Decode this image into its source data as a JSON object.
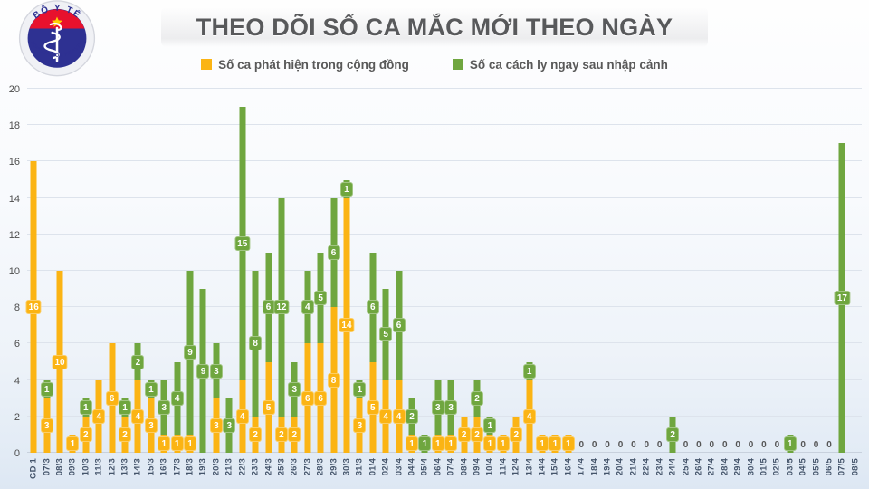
{
  "header": {
    "title": "THEO DÕI SỐ CA MẮC MỚI THEO NGÀY"
  },
  "logo": {
    "top_text": "BỘ Y TẾ",
    "bottom_text": "MINISTRY OF HEALTH"
  },
  "colors": {
    "community_yellow": "#FBB414",
    "imported_green": "#6FA63F",
    "title_text": "#58595b",
    "axis_text": "#44546a",
    "grid_line": "#dde3ec",
    "logo_navy": "#2e3192",
    "logo_red": "#e8112d",
    "logo_star_yellow": "#ffd400"
  },
  "chart_data": {
    "type": "bar",
    "stacked": true,
    "title": "THEO DÕI SỐ CA MẮC MỚI THEO NGÀY",
    "ylabel": "",
    "xlabel": "",
    "ylim": [
      0,
      20
    ],
    "ytick_step": 2,
    "grid": true,
    "legend_position": "top",
    "zero_label": "0",
    "categories": [
      "GĐ 1",
      "07/3",
      "08/3",
      "09/3",
      "10/3",
      "11/3",
      "12/3",
      "13/3",
      "14/3",
      "15/3",
      "16/3",
      "17/3",
      "18/3",
      "19/3",
      "20/3",
      "21/3",
      "22/3",
      "23/3",
      "24/3",
      "25/3",
      "26/3",
      "27/3",
      "28/3",
      "29/3",
      "30/3",
      "31/3",
      "01/4",
      "02/4",
      "03/4",
      "04/4",
      "05/4",
      "06/4",
      "07/4",
      "08/4",
      "09/4",
      "10/4",
      "11/4",
      "12/4",
      "13/4",
      "14/4",
      "15/4",
      "16/4",
      "17/4",
      "18/4",
      "19/4",
      "20/4",
      "21/4",
      "22/4",
      "23/4",
      "24/4",
      "25/4",
      "26/4",
      "27/4",
      "28/4",
      "29/4",
      "30/4",
      "01/5",
      "02/5",
      "03/5",
      "04/5",
      "05/5",
      "06/5",
      "07/5",
      "08/5"
    ],
    "series": [
      {
        "name": "Số ca phát hiện trong cộng đồng",
        "color": "#FBB414",
        "values": [
          16,
          3,
          10,
          1,
          2,
          4,
          6,
          2,
          4,
          3,
          1,
          1,
          1,
          0,
          3,
          0,
          4,
          2,
          5,
          2,
          2,
          6,
          6,
          8,
          14,
          3,
          5,
          4,
          4,
          1,
          0,
          1,
          1,
          2,
          2,
          1,
          1,
          2,
          4,
          1,
          1,
          1,
          0,
          0,
          0,
          0,
          0,
          0,
          0,
          0,
          0,
          0,
          0,
          0,
          0,
          0,
          0,
          0,
          0,
          0,
          0,
          0,
          0,
          null
        ]
      },
      {
        "name": "Số ca cách ly ngay sau nhập cảnh",
        "color": "#6FA63F",
        "values": [
          0,
          1,
          0,
          0,
          1,
          0,
          0,
          1,
          2,
          1,
          3,
          4,
          9,
          9,
          3,
          3,
          15,
          8,
          6,
          12,
          3,
          4,
          5,
          6,
          1,
          1,
          6,
          5,
          6,
          2,
          1,
          3,
          3,
          0,
          2,
          1,
          0,
          0,
          1,
          0,
          0,
          0,
          0,
          0,
          0,
          0,
          0,
          0,
          0,
          2,
          0,
          0,
          0,
          0,
          0,
          0,
          0,
          0,
          1,
          0,
          0,
          0,
          17,
          null
        ]
      }
    ]
  }
}
